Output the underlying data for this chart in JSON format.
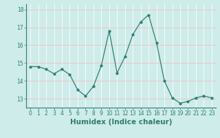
{
  "x": [
    0,
    1,
    2,
    3,
    4,
    5,
    6,
    7,
    8,
    9,
    10,
    11,
    12,
    13,
    14,
    15,
    16,
    17,
    18,
    19,
    20,
    21,
    22,
    23
  ],
  "y": [
    14.8,
    14.8,
    14.65,
    14.4,
    14.65,
    14.35,
    13.5,
    13.15,
    13.7,
    14.85,
    16.8,
    14.45,
    15.35,
    16.6,
    17.3,
    17.7,
    16.15,
    14.0,
    13.05,
    12.75,
    12.85,
    13.05,
    13.15,
    13.05
  ],
  "xlabel": "Humidex (Indice chaleur)",
  "ylim": [
    12.5,
    18.3
  ],
  "xlim": [
    -0.5,
    23.5
  ],
  "yticks": [
    13,
    14,
    15,
    16,
    17,
    18
  ],
  "xticks": [
    0,
    1,
    2,
    3,
    4,
    5,
    6,
    7,
    8,
    9,
    10,
    11,
    12,
    13,
    14,
    15,
    16,
    17,
    18,
    19,
    20,
    21,
    22,
    23
  ],
  "line_color": "#2e7d6e",
  "marker": "o",
  "marker_size": 2.0,
  "bg_color": "#ceecea",
  "grid_color": "#ffffff",
  "grid_h_color": "#f0c0c0",
  "tick_label_fontsize": 5.5,
  "xlabel_fontsize": 7.5,
  "linewidth": 0.9
}
